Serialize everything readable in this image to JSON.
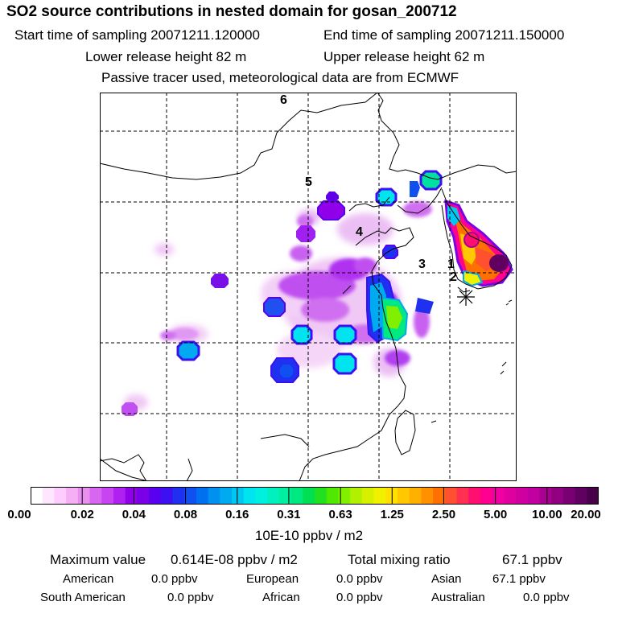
{
  "title": "SO2 source contributions in nested domain for gosan_200712",
  "header": {
    "start_label": "Start time of sampling 20071211.120000",
    "end_label": "End time of sampling 20071211.150000",
    "lower_label": "Lower release height   82 m",
    "upper_label": "Upper release height   62 m",
    "tracer_note": "Passive tracer used, meteorological data are from ECMWF"
  },
  "map": {
    "point_labels": [
      "6",
      "5",
      "4",
      "3",
      "1",
      "2"
    ],
    "receptor": "gosan station star marker"
  },
  "colorbar": {
    "ticks": [
      "0.00",
      "0.02",
      "0.04",
      "0.08",
      "0.16",
      "0.31",
      "0.63",
      "1.25",
      "2.50",
      "5.00",
      "10.00",
      "20.00"
    ],
    "colors": [
      "#ffffff",
      "#ffe6ff",
      "#ffccff",
      "#f5b0f5",
      "#e890f0",
      "#d966f0",
      "#c844f0",
      "#b020f0",
      "#9000e8",
      "#7a00e8",
      "#5a00f0",
      "#3c10f0",
      "#2030f0",
      "#1050f0",
      "#0070f0",
      "#0090f0",
      "#00aaf0",
      "#00c8f0",
      "#00e4f0",
      "#00f0e0",
      "#00f0c0",
      "#00f0a0",
      "#00e880",
      "#00e050",
      "#20e020",
      "#50e800",
      "#80f000",
      "#b0f000",
      "#d8f000",
      "#f0f000",
      "#ffe000",
      "#ffc800",
      "#ffb000",
      "#ff9000",
      "#ff7000",
      "#ff5030",
      "#ff3050",
      "#ff1070",
      "#ff0090",
      "#f000a0",
      "#e000a0",
      "#d000a0",
      "#c000a0",
      "#a80090",
      "#900080",
      "#780070",
      "#600060",
      "#480048"
    ],
    "unit": "10E-10 ppbv / m2"
  },
  "summary": {
    "max_label": "Maximum value",
    "max_value": "0.614E-08 ppbv / m2",
    "total_label": "Total mixing ratio",
    "total_value": "67.1 ppbv",
    "regions": [
      {
        "name": "American",
        "value": "0.0 ppbv"
      },
      {
        "name": "European",
        "value": "0.0 ppbv"
      },
      {
        "name": "Asian",
        "value": "67.1 ppbv"
      },
      {
        "name": "South American",
        "value": "0.0 ppbv"
      },
      {
        "name": "African",
        "value": "0.0 ppbv"
      },
      {
        "name": "Australian",
        "value": "0.0 ppbv"
      }
    ]
  }
}
